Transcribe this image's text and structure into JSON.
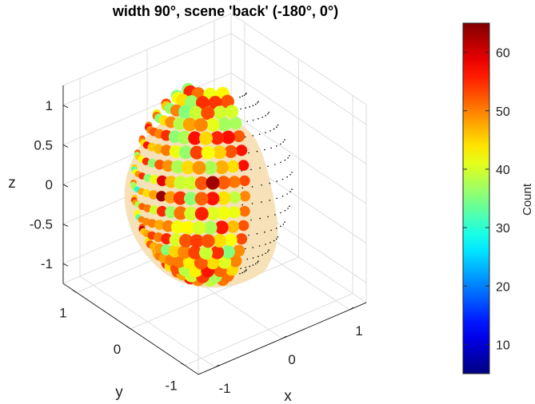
{
  "chart_data": {
    "type": "scatter",
    "title": "width 90°, scene 'back' (-180°, 0°)",
    "xlabel": "x",
    "ylabel": "y",
    "zlabel": "z",
    "x_ticks": [
      "-1",
      "0",
      "1"
    ],
    "y_ticks": [
      "-1",
      "0",
      "1"
    ],
    "z_ticks": [
      "-1",
      "-0.5",
      "0",
      "0.5",
      "1"
    ],
    "xlim": [
      -1.25,
      1.25
    ],
    "ylim": [
      -1.25,
      1.25
    ],
    "zlim": [
      -1.25,
      1.25
    ],
    "grid": true,
    "colorbar": {
      "label": "Count",
      "ticks": [
        "10",
        "20",
        "30",
        "40",
        "50",
        "60"
      ],
      "tick_values": [
        10,
        20,
        30,
        40,
        50,
        60
      ],
      "range": [
        5,
        65
      ],
      "colormap": "jet"
    },
    "view": "3-D sphere of sample points; markers sized and colored by count",
    "scene_center_deg": [
      -180,
      0
    ],
    "width_deg": 90,
    "colors": {
      "scene_patch": "#f6dfb4",
      "unsampled_point": "#000000"
    }
  }
}
